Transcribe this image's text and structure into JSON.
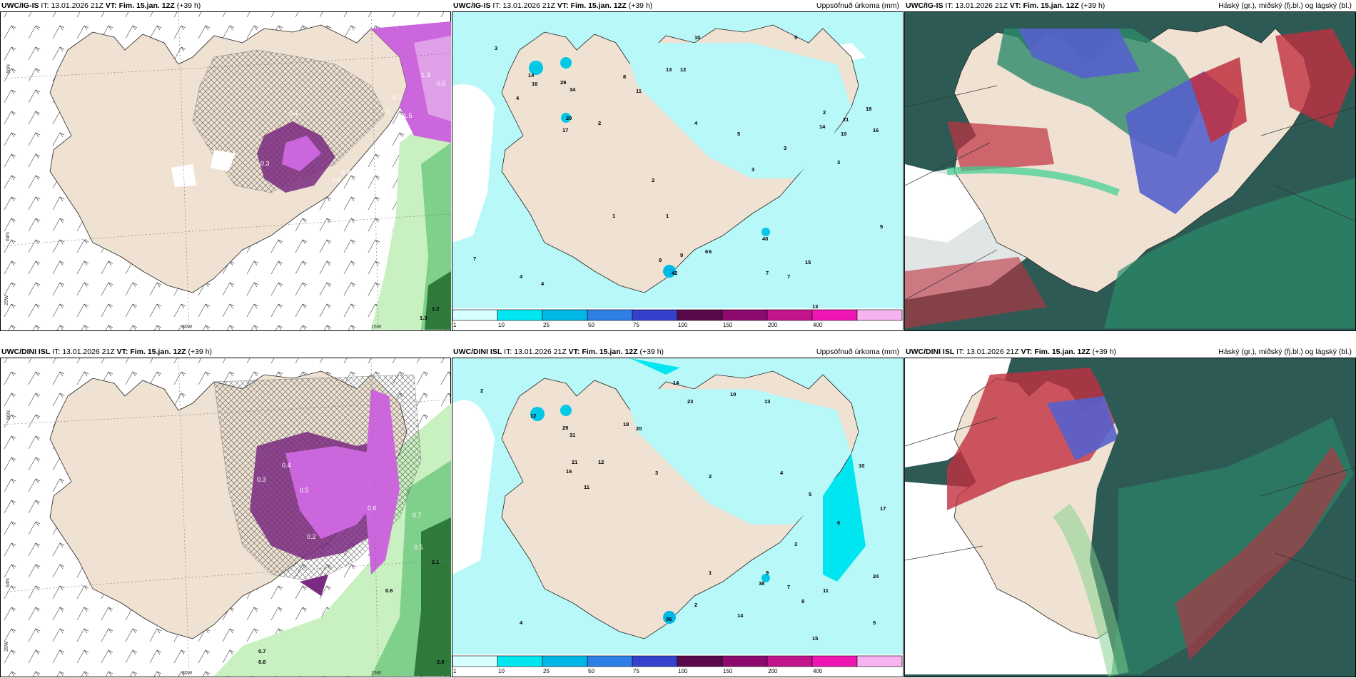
{
  "panels": [
    {
      "id": "p1",
      "model": "UWC/IG-IS",
      "it_label": "IT:",
      "it": "13.01.2026 21Z",
      "vt_label": "VT: Fim. 15.jan. 12Z",
      "lead": "(+39 h)",
      "subtitle": "",
      "kind": "wind",
      "grid": [
        "66N",
        "64N",
        "25W",
        "20W",
        "15W"
      ],
      "values": [
        "1.3",
        "0.5",
        "1.5",
        "0.3",
        "0.4",
        "0.3",
        "0.6",
        "0.8",
        "1.2",
        "1.3",
        "0.7"
      ]
    },
    {
      "id": "p2",
      "model": "UWC/IG-IS",
      "it_label": "IT:",
      "it": "13.01.2026 21Z",
      "vt_label": "VT: Fim. 15.jan. 12Z",
      "lead": "(+39 h)",
      "subtitle": "Uppsöfnuð úrkoma (mm)",
      "kind": "precip",
      "numbers": [
        "3",
        "10",
        "7",
        "5",
        "14",
        "16",
        "29",
        "34",
        "20",
        "17",
        "11",
        "13",
        "12",
        "2",
        "4",
        "5",
        "9",
        "3",
        "1",
        "8",
        "6",
        "2",
        "3",
        "4",
        "21",
        "15",
        "14",
        "13",
        "7",
        "2",
        "4",
        "42",
        "9",
        "40",
        "18",
        "16",
        "10",
        "5",
        "3",
        "6",
        "7",
        "1",
        "4"
      ]
    },
    {
      "id": "p3",
      "model": "UWC/IG-IS",
      "it_label": "IT:",
      "it": "13.01.2026 21Z",
      "vt_label": "VT: Fim. 15.jan. 12Z",
      "lead": "(+39 h)",
      "subtitle": "Háský (gr.), miðský (fj.bl.) og lágský (bl.)",
      "kind": "cloud"
    },
    {
      "id": "p4",
      "model": "UWC/DINI ISL",
      "it_label": "IT:",
      "it": "13.01.2026 21Z",
      "vt_label": "VT: Fim. 15.jan. 12Z",
      "lead": "(+39 h)",
      "subtitle": "",
      "kind": "wind",
      "grid": [
        "66N",
        "64N",
        "25W",
        "20W",
        "15W"
      ],
      "values": [
        "0.3",
        "0.4",
        "0.5",
        "0.6",
        "0.2",
        "0.5",
        "0.7",
        "2.1",
        "0.6",
        "0.7",
        "0.8",
        "2.0"
      ]
    },
    {
      "id": "p5",
      "model": "UWC/DINI ISL",
      "it_label": "IT:",
      "it": "13.01.2026 21Z",
      "vt_label": "VT: Fim. 15.jan. 12Z",
      "lead": "(+39 h)",
      "subtitle": "Uppsöfnuð úrkoma (mm)",
      "kind": "precip",
      "numbers": [
        "2",
        "14",
        "10",
        "13",
        "12",
        "29",
        "31",
        "21",
        "16",
        "18",
        "20",
        "23",
        "12",
        "3",
        "2",
        "11",
        "4",
        "5",
        "6",
        "9",
        "1",
        "3",
        "17",
        "24",
        "14",
        "10",
        "11",
        "8",
        "7",
        "2",
        "15",
        "36",
        "38",
        "5",
        "4"
      ]
    },
    {
      "id": "p6",
      "model": "UWC/DINI ISL",
      "it_label": "IT:",
      "it": "13.01.2026 21Z",
      "vt_label": "VT: Fim. 15.jan. 12Z",
      "lead": "(+39 h)",
      "subtitle": "Háský (gr.), miðský (fj.bl.) og lágský (bl.)",
      "kind": "cloud"
    }
  ],
  "colorbar": {
    "labels": [
      "1",
      "10",
      "25",
      "50",
      "75",
      "100",
      "150",
      "200",
      "400"
    ],
    "colors": [
      "#d6ffff",
      "#00e6f0",
      "#00b8e6",
      "#2d7fe6",
      "#3341cc",
      "#5a0a4a",
      "#8c0a6e",
      "#c2148c",
      "#f016b4",
      "#f5b4f0"
    ]
  },
  "colors": {
    "land": "#efe2d2",
    "sea_precip": "#b8f8f8",
    "precip_mid": "#00c8e6",
    "purple": "#cc66dd",
    "dark_purple": "#7a2a80",
    "green_light": "#c8f0c0",
    "green_dark": "#2f7a3a",
    "cloud_high_green": "#2a8a6a",
    "cloud_mid": "#5560cc",
    "cloud_low": "#c03040",
    "cloud_dark": "#2d5a55"
  }
}
